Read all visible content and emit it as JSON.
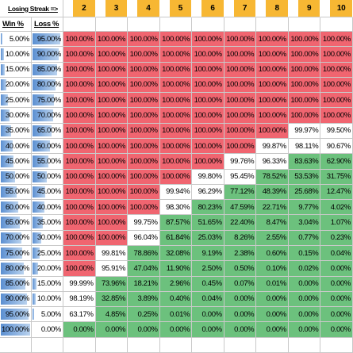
{
  "header": {
    "title": "Losing Streak =>",
    "streaks": [
      "2",
      "3",
      "4",
      "5",
      "6",
      "7",
      "8",
      "9",
      "10"
    ],
    "win_label": "Win %",
    "loss_label": "Loss %"
  },
  "colors": {
    "red": "#f06570",
    "green": "#6cc17d",
    "orange": "#f7b733",
    "bar": "#5b8fd1"
  },
  "rows": [
    {
      "win": "5.00%",
      "loss": "95.00%",
      "cells": [
        "100.00%",
        "100.00%",
        "100.00%",
        "100.00%",
        "100.00%",
        "100.00%",
        "100.00%",
        "100.00%",
        "100.00%"
      ]
    },
    {
      "win": "10.00%",
      "loss": "90.00%",
      "cells": [
        "100.00%",
        "100.00%",
        "100.00%",
        "100.00%",
        "100.00%",
        "100.00%",
        "100.00%",
        "100.00%",
        "100.00%"
      ]
    },
    {
      "win": "15.00%",
      "loss": "85.00%",
      "cells": [
        "100.00%",
        "100.00%",
        "100.00%",
        "100.00%",
        "100.00%",
        "100.00%",
        "100.00%",
        "100.00%",
        "100.00%"
      ]
    },
    {
      "win": "20.00%",
      "loss": "80.00%",
      "cells": [
        "100.00%",
        "100.00%",
        "100.00%",
        "100.00%",
        "100.00%",
        "100.00%",
        "100.00%",
        "100.00%",
        "100.00%"
      ]
    },
    {
      "win": "25.00%",
      "loss": "75.00%",
      "cells": [
        "100.00%",
        "100.00%",
        "100.00%",
        "100.00%",
        "100.00%",
        "100.00%",
        "100.00%",
        "100.00%",
        "100.00%"
      ]
    },
    {
      "win": "30.00%",
      "loss": "70.00%",
      "cells": [
        "100.00%",
        "100.00%",
        "100.00%",
        "100.00%",
        "100.00%",
        "100.00%",
        "100.00%",
        "100.00%",
        "100.00%"
      ]
    },
    {
      "win": "35.00%",
      "loss": "65.00%",
      "cells": [
        "100.00%",
        "100.00%",
        "100.00%",
        "100.00%",
        "100.00%",
        "100.00%",
        "100.00%",
        "99.97%",
        "99.50%"
      ]
    },
    {
      "win": "40.00%",
      "loss": "60.00%",
      "cells": [
        "100.00%",
        "100.00%",
        "100.00%",
        "100.00%",
        "100.00%",
        "100.00%",
        "99.87%",
        "98.11%",
        "90.67%"
      ]
    },
    {
      "win": "45.00%",
      "loss": "55.00%",
      "cells": [
        "100.00%",
        "100.00%",
        "100.00%",
        "100.00%",
        "100.00%",
        "99.76%",
        "96.33%",
        "83.63%",
        "62.90%"
      ]
    },
    {
      "win": "50.00%",
      "loss": "50.00%",
      "cells": [
        "100.00%",
        "100.00%",
        "100.00%",
        "100.00%",
        "99.80%",
        "95.45%",
        "78.52%",
        "53.53%",
        "31.75%"
      ]
    },
    {
      "win": "55.00%",
      "loss": "45.00%",
      "cells": [
        "100.00%",
        "100.00%",
        "100.00%",
        "99.94%",
        "96.29%",
        "77.12%",
        "48.39%",
        "25.68%",
        "12.47%"
      ]
    },
    {
      "win": "60.00%",
      "loss": "40.00%",
      "cells": [
        "100.00%",
        "100.00%",
        "100.00%",
        "98.30%",
        "80.23%",
        "47.59%",
        "22.71%",
        "9.77%",
        "4.02%"
      ]
    },
    {
      "win": "65.00%",
      "loss": "35.00%",
      "cells": [
        "100.00%",
        "100.00%",
        "99.75%",
        "87.57%",
        "51.65%",
        "22.40%",
        "8.47%",
        "3.04%",
        "1.07%"
      ]
    },
    {
      "win": "70.00%",
      "loss": "30.00%",
      "cells": [
        "100.00%",
        "100.00%",
        "96.04%",
        "61.84%",
        "25.03%",
        "8.26%",
        "2.55%",
        "0.77%",
        "0.23%"
      ]
    },
    {
      "win": "75.00%",
      "loss": "25.00%",
      "cells": [
        "100.00%",
        "99.81%",
        "78.86%",
        "32.08%",
        "9.19%",
        "2.38%",
        "0.60%",
        "0.15%",
        "0.04%"
      ]
    },
    {
      "win": "80.00%",
      "loss": "20.00%",
      "cells": [
        "100.00%",
        "95.91%",
        "47.04%",
        "11.90%",
        "2.50%",
        "0.50%",
        "0.10%",
        "0.02%",
        "0.00%"
      ]
    },
    {
      "win": "85.00%",
      "loss": "15.00%",
      "cells": [
        "99.99%",
        "73.96%",
        "18.21%",
        "2.96%",
        "0.45%",
        "0.07%",
        "0.01%",
        "0.00%",
        "0.00%"
      ]
    },
    {
      "win": "90.00%",
      "loss": "10.00%",
      "cells": [
        "98.19%",
        "32.85%",
        "3.89%",
        "0.40%",
        "0.04%",
        "0.00%",
        "0.00%",
        "0.00%",
        "0.00%"
      ]
    },
    {
      "win": "95.00%",
      "loss": "5.00%",
      "cells": [
        "63.17%",
        "4.85%",
        "0.25%",
        "0.01%",
        "0.00%",
        "0.00%",
        "0.00%",
        "0.00%",
        "0.00%"
      ]
    },
    {
      "win": "100.00%",
      "loss": "0.00%",
      "cells": [
        "0.00%",
        "0.00%",
        "0.00%",
        "0.00%",
        "0.00%",
        "0.00%",
        "0.00%",
        "0.00%",
        "0.00%"
      ]
    }
  ],
  "shading": [
    "rrrrrrrrr",
    "rrrrrrrrr",
    "rrrrrrrrr",
    "rrrrrrrrr",
    "rrrrrrrrr",
    "rrrrrrrrr",
    "rrrrrrrww",
    "rrrrrrwww",
    "rrrrrwwgg",
    "rrrrwwggg",
    "rrrwwgggg",
    "rrrwggggg",
    "rrwgggggg",
    "rrwgggggg",
    "rwggggggg",
    "rwggggggg",
    "wgggggggg",
    "wgggggggg",
    "wgggggggg",
    "ggggggggg"
  ]
}
